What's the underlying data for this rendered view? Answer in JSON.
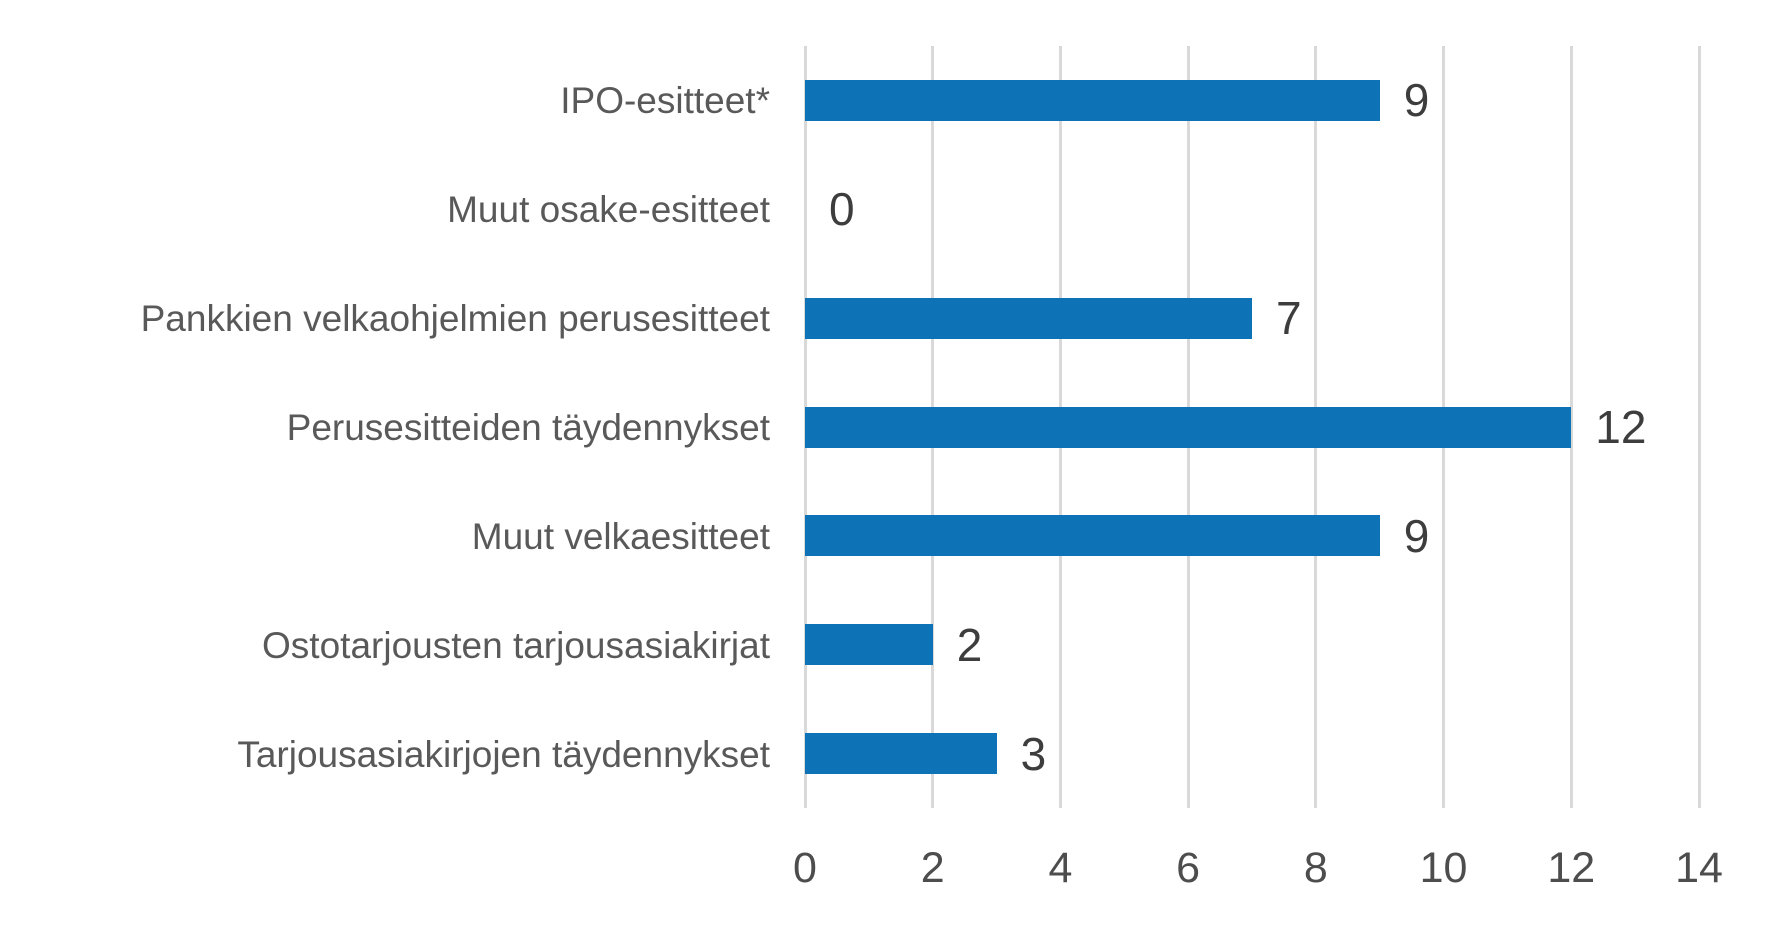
{
  "chart_data": {
    "type": "bar",
    "orientation": "horizontal",
    "title": "",
    "xlabel": "",
    "ylabel": "",
    "categories": [
      "IPO-esitteet*",
      "Muut osake-esitteet",
      "Pankkien velkaohjelmien perusesitteet",
      "Perusesitteiden täydennykset",
      "Muut velkaesitteet",
      "Ostotarjousten tarjousasiakirjat",
      "Tarjousasiakirjojen täydennykset"
    ],
    "values": [
      9,
      0,
      7,
      12,
      9,
      2,
      3
    ],
    "value_labels": [
      "9",
      "0",
      "7",
      "12",
      "9",
      "2",
      "3"
    ],
    "xlim": [
      0,
      14
    ],
    "xticks": [
      0,
      2,
      4,
      6,
      8,
      10,
      12,
      14
    ],
    "xtick_labels": [
      "0",
      "2",
      "4",
      "6",
      "8",
      "10",
      "12",
      "14"
    ],
    "grid": true,
    "legend": "none",
    "colors": {
      "bar": "#0d72b6",
      "gridline": "#d9d9d9",
      "category_label": "#595959",
      "value_label": "#3d3d3d",
      "tick_label": "#4d4d4d",
      "background": "#ffffff"
    }
  }
}
